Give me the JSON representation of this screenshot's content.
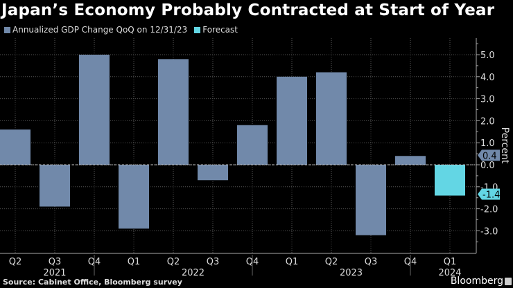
{
  "title": "Japan’s Economy Probably Contracted at Start of Year",
  "source": "Source: Cabinet Office, Bloomberg survey",
  "brand": "Bloomberg",
  "colors": {
    "actual": "#7189aa",
    "forecast": "#63d6e4",
    "background": "#000000"
  },
  "chart_data": {
    "type": "bar",
    "title": "Japan’s Economy Probably Contracted at Start of Year",
    "ylabel": "Percent",
    "ylim": [
      -3.7,
      5.6
    ],
    "yticks": [
      "5.0",
      "4.0",
      "3.0",
      "2.0",
      "1.0",
      "0.0",
      "-1.0",
      "-2.0",
      "-3.0"
    ],
    "ytick_values": [
      5,
      4,
      3,
      2,
      1,
      0,
      -1,
      -2,
      -3
    ],
    "grid": true,
    "legend_placement": "top-left",
    "categories": [
      "Q2",
      "Q3",
      "Q4",
      "Q1",
      "Q2",
      "Q3",
      "Q4",
      "Q1",
      "Q2",
      "Q3",
      "Q4",
      "Q1"
    ],
    "years": [
      {
        "label": "2021",
        "start": 0,
        "end": 2
      },
      {
        "label": "2022",
        "start": 3,
        "end": 6
      },
      {
        "label": "2023",
        "start": 7,
        "end": 10
      },
      {
        "label": "2024",
        "start": 11,
        "end": 11
      }
    ],
    "series": [
      {
        "name": "Annualized GDP Change QoQ on 12/31/23",
        "values": [
          1.6,
          -1.9,
          5.0,
          -2.9,
          4.8,
          -0.7,
          1.8,
          4.0,
          4.2,
          -3.2,
          0.4,
          null
        ]
      },
      {
        "name": "Forecast",
        "values": [
          null,
          null,
          null,
          null,
          null,
          null,
          null,
          null,
          null,
          null,
          null,
          -1.4
        ]
      }
    ],
    "value_labels": [
      {
        "series": 0,
        "label": "0.4",
        "value": 0.4
      },
      {
        "series": 1,
        "label": "-1.4",
        "value": -1.4
      }
    ]
  }
}
